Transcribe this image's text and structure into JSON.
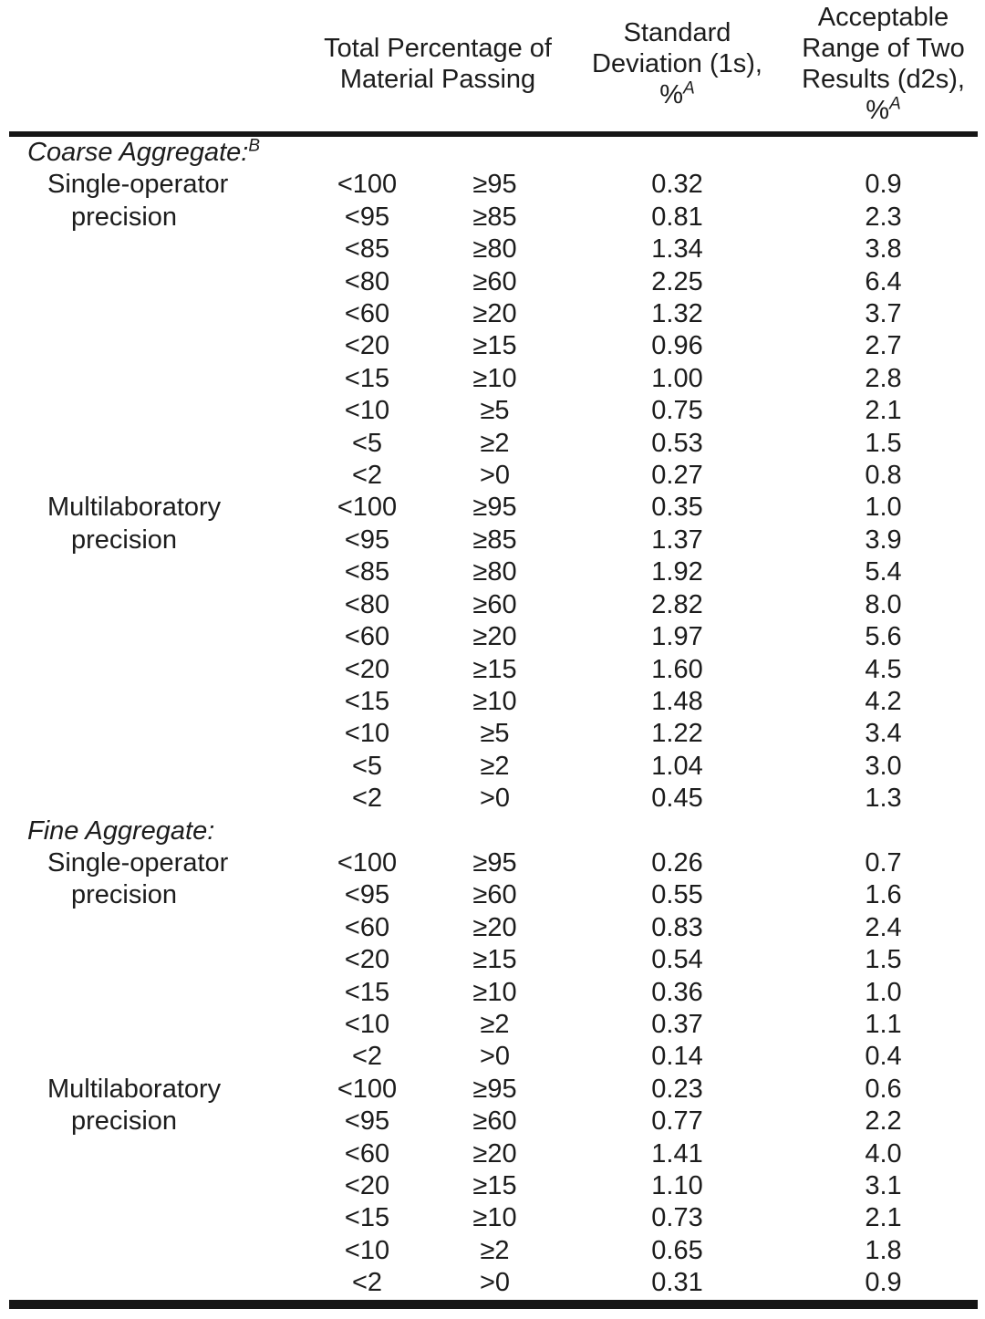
{
  "page": {
    "background_color": "#ffffff",
    "text_color": "#1c1c1c",
    "rule_color": "#161616"
  },
  "table": {
    "header": {
      "passing_line1": "Total Percentage of",
      "passing_line2": "Material Passing",
      "sd_line1": "Standard",
      "sd_line2": "Deviation (1s),",
      "sd_unit": "%",
      "sd_footnote": "A",
      "d2s_line1": "Acceptable",
      "d2s_line2": "Range of Two",
      "d2s_line3": "Results (d2s),",
      "d2s_unit": "%",
      "d2s_footnote": "A"
    },
    "sections": [
      {
        "title": "Coarse Aggregate:",
        "footnote": "B",
        "groups": [
          {
            "label_line1": "Single-operator",
            "label_line2": "precision",
            "rows": [
              {
                "lower": "<100",
                "upper": "≥95",
                "sd": "0.32",
                "d2s": "0.9"
              },
              {
                "lower": "<95",
                "upper": "≥85",
                "sd": "0.81",
                "d2s": "2.3"
              },
              {
                "lower": "<85",
                "upper": "≥80",
                "sd": "1.34",
                "d2s": "3.8"
              },
              {
                "lower": "<80",
                "upper": "≥60",
                "sd": "2.25",
                "d2s": "6.4"
              },
              {
                "lower": "<60",
                "upper": "≥20",
                "sd": "1.32",
                "d2s": "3.7"
              },
              {
                "lower": "<20",
                "upper": "≥15",
                "sd": "0.96",
                "d2s": "2.7"
              },
              {
                "lower": "<15",
                "upper": "≥10",
                "sd": "1.00",
                "d2s": "2.8"
              },
              {
                "lower": "<10",
                "upper": "≥5",
                "sd": "0.75",
                "d2s": "2.1"
              },
              {
                "lower": "<5",
                "upper": "≥2",
                "sd": "0.53",
                "d2s": "1.5"
              },
              {
                "lower": "<2",
                "upper": ">0",
                "sd": "0.27",
                "d2s": "0.8"
              }
            ]
          },
          {
            "label_line1": "Multilaboratory",
            "label_line2": "precision",
            "rows": [
              {
                "lower": "<100",
                "upper": "≥95",
                "sd": "0.35",
                "d2s": "1.0"
              },
              {
                "lower": "<95",
                "upper": "≥85",
                "sd": "1.37",
                "d2s": "3.9"
              },
              {
                "lower": "<85",
                "upper": "≥80",
                "sd": "1.92",
                "d2s": "5.4"
              },
              {
                "lower": "<80",
                "upper": "≥60",
                "sd": "2.82",
                "d2s": "8.0"
              },
              {
                "lower": "<60",
                "upper": "≥20",
                "sd": "1.97",
                "d2s": "5.6"
              },
              {
                "lower": "<20",
                "upper": "≥15",
                "sd": "1.60",
                "d2s": "4.5"
              },
              {
                "lower": "<15",
                "upper": "≥10",
                "sd": "1.48",
                "d2s": "4.2"
              },
              {
                "lower": "<10",
                "upper": "≥5",
                "sd": "1.22",
                "d2s": "3.4"
              },
              {
                "lower": "<5",
                "upper": "≥2",
                "sd": "1.04",
                "d2s": "3.0"
              },
              {
                "lower": "<2",
                "upper": ">0",
                "sd": "0.45",
                "d2s": "1.3"
              }
            ]
          }
        ]
      },
      {
        "title": "Fine Aggregate:",
        "footnote": "",
        "groups": [
          {
            "label_line1": "Single-operator",
            "label_line2": "precision",
            "rows": [
              {
                "lower": "<100",
                "upper": "≥95",
                "sd": "0.26",
                "d2s": "0.7"
              },
              {
                "lower": "<95",
                "upper": "≥60",
                "sd": "0.55",
                "d2s": "1.6"
              },
              {
                "lower": "<60",
                "upper": "≥20",
                "sd": "0.83",
                "d2s": "2.4"
              },
              {
                "lower": "<20",
                "upper": "≥15",
                "sd": "0.54",
                "d2s": "1.5"
              },
              {
                "lower": "<15",
                "upper": "≥10",
                "sd": "0.36",
                "d2s": "1.0"
              },
              {
                "lower": "<10",
                "upper": "≥2",
                "sd": "0.37",
                "d2s": "1.1"
              },
              {
                "lower": "<2",
                "upper": ">0",
                "sd": "0.14",
                "d2s": "0.4"
              }
            ]
          },
          {
            "label_line1": "Multilaboratory",
            "label_line2": "precision",
            "rows": [
              {
                "lower": "<100",
                "upper": "≥95",
                "sd": "0.23",
                "d2s": "0.6"
              },
              {
                "lower": "<95",
                "upper": "≥60",
                "sd": "0.77",
                "d2s": "2.2"
              },
              {
                "lower": "<60",
                "upper": "≥20",
                "sd": "1.41",
                "d2s": "4.0"
              },
              {
                "lower": "<20",
                "upper": "≥15",
                "sd": "1.10",
                "d2s": "3.1"
              },
              {
                "lower": "<15",
                "upper": "≥10",
                "sd": "0.73",
                "d2s": "2.1"
              },
              {
                "lower": "<10",
                "upper": "≥2",
                "sd": "0.65",
                "d2s": "1.8"
              },
              {
                "lower": "<2",
                "upper": ">0",
                "sd": "0.31",
                "d2s": "0.9"
              }
            ]
          }
        ]
      }
    ]
  }
}
